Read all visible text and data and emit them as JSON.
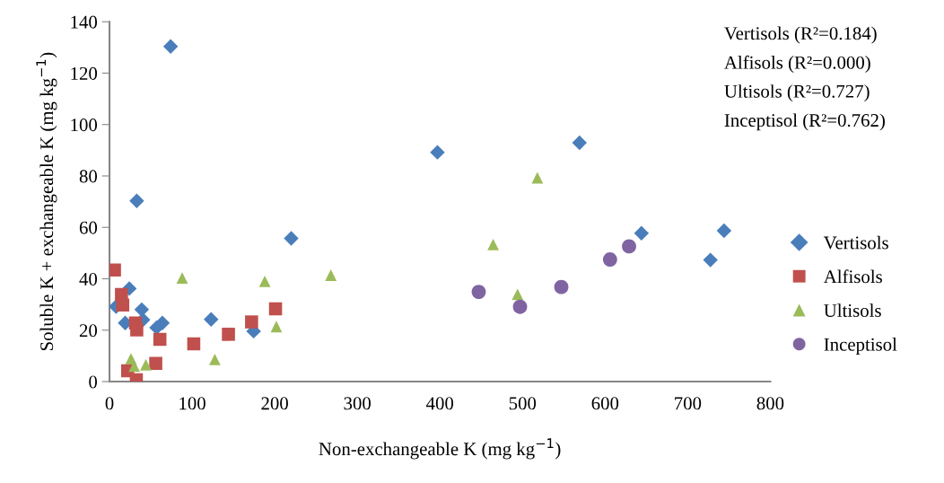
{
  "chart_data": {
    "type": "scatter",
    "xlabel": "Non-exchangeable K (mg kg$^{−1}$)",
    "ylabel": "Soluble K + exchangeable K (mg kg$^{−1}$)",
    "annotations": [
      "Vertisols (R²=0.184)",
      "Alfisols (R²=0.000)",
      "Ultisols (R²=0.727)",
      "Inceptisol (R²=0.762)"
    ],
    "xlim": [
      0,
      800
    ],
    "xticks": [
      0,
      100,
      200,
      300,
      400,
      500,
      600,
      700,
      800
    ],
    "ylim": [
      0,
      140
    ],
    "yticks": [
      0,
      20,
      40,
      60,
      80,
      100,
      120,
      140
    ],
    "grid": false,
    "legend": "right",
    "series": [
      {
        "name": "Vertisols",
        "color": "#4a7ebb",
        "marker": "diamond",
        "x": [
          74,
          33,
          220,
          397,
          569,
          644,
          744,
          727.5,
          24,
          8,
          39,
          19,
          40.5,
          64,
          57,
          123,
          174.5
        ],
        "values": [
          130.4,
          70.3,
          55.7,
          89.2,
          92.9,
          57.7,
          58.7,
          47.3,
          36.2,
          29.2,
          28,
          22.8,
          24,
          22.8,
          21,
          24.2,
          19.6
        ]
      },
      {
        "name": "Alfisols",
        "color": "#c0504d",
        "marker": "square",
        "x": [
          6,
          14.5,
          16,
          31.5,
          33,
          61,
          102,
          144,
          172,
          201,
          56,
          22,
          32.5
        ],
        "values": [
          43.4,
          33.9,
          29.8,
          22.8,
          20.1,
          16.4,
          14.7,
          18.4,
          23.2,
          28.3,
          7.1,
          4.2,
          0.7
        ]
      },
      {
        "name": "Ultisols",
        "color": "#9bbb59",
        "marker": "triangle",
        "x": [
          88,
          188,
          202,
          127.5,
          26,
          30,
          44,
          268,
          464.5,
          518,
          494
        ],
        "values": [
          40.3,
          39,
          21.4,
          8.6,
          8.9,
          6,
          6.5,
          41.4,
          53.3,
          79.3,
          33.9
        ]
      },
      {
        "name": "Inceptisol",
        "color": "#8064a2",
        "marker": "circle",
        "x": [
          447,
          497,
          547,
          606,
          629
        ],
        "values": [
          34.9,
          29.1,
          36.8,
          47.5,
          52.6
        ]
      }
    ]
  }
}
